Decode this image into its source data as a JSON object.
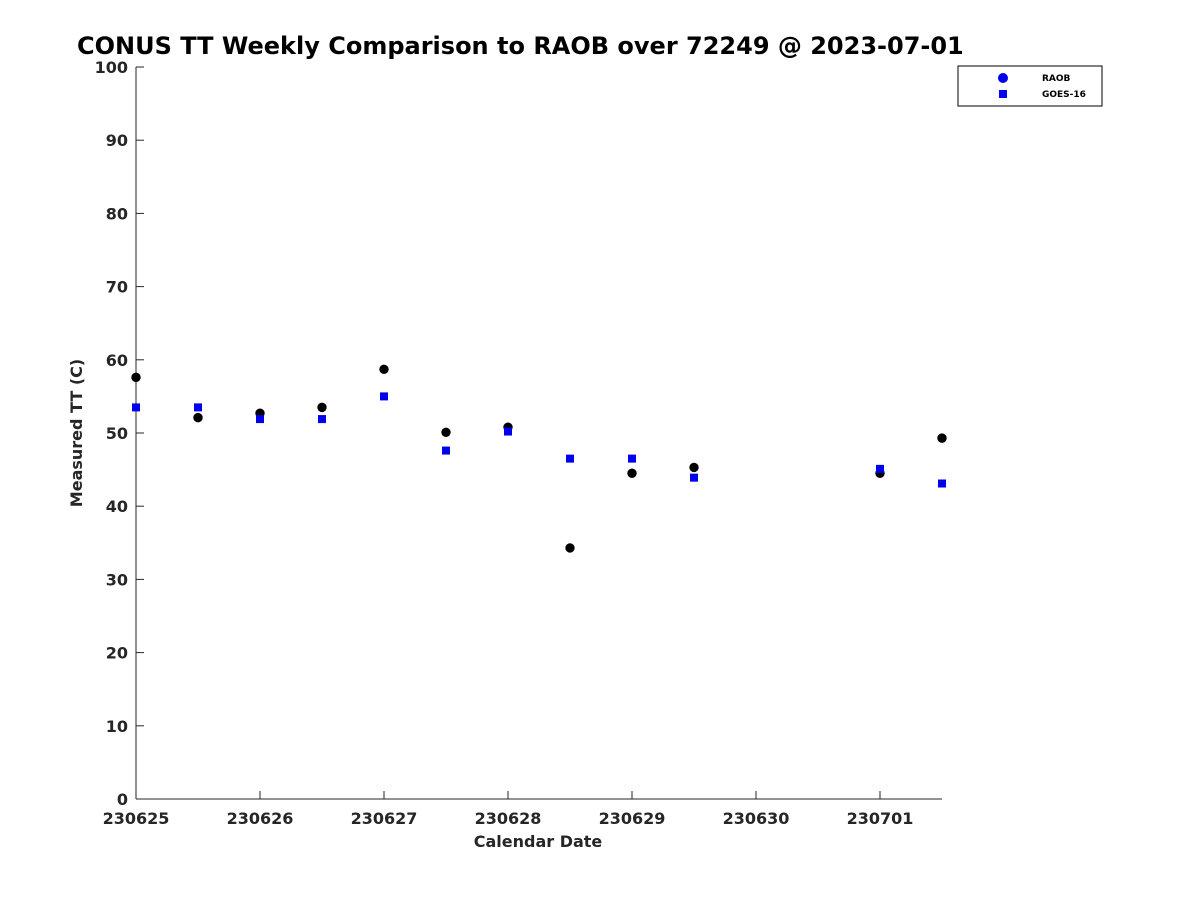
{
  "chart_data": {
    "type": "scatter",
    "title": "CONUS TT Weekly Comparison to RAOB over 72249 @ 2023-07-01",
    "xlabel": "Calendar Date",
    "ylabel": "Measured TT (C)",
    "x_ticks": [
      "230625",
      "230626",
      "230627",
      "230628",
      "230629",
      "230630",
      "230701"
    ],
    "x_tick_days": [
      0,
      1,
      2,
      3,
      4,
      5,
      6
    ],
    "xlim_days": [
      0,
      6.5
    ],
    "ylim": [
      0,
      100
    ],
    "y_ticks": [
      0,
      10,
      20,
      30,
      40,
      50,
      60,
      70,
      80,
      90,
      100
    ],
    "grid": false,
    "legend_position": "top-right",
    "series": [
      {
        "name": "RAOB",
        "marker": "circle",
        "color": "#000000",
        "legend_color": "#0000ee",
        "points": [
          {
            "day": 0.0,
            "y": 57.6
          },
          {
            "day": 0.5,
            "y": 52.1
          },
          {
            "day": 1.0,
            "y": 52.7
          },
          {
            "day": 1.5,
            "y": 53.5
          },
          {
            "day": 2.0,
            "y": 58.7
          },
          {
            "day": 2.5,
            "y": 50.1
          },
          {
            "day": 3.0,
            "y": 50.8
          },
          {
            "day": 3.5,
            "y": 34.3
          },
          {
            "day": 4.0,
            "y": 44.5
          },
          {
            "day": 4.5,
            "y": 45.3
          },
          {
            "day": 6.0,
            "y": 44.5
          },
          {
            "day": 6.5,
            "y": 49.3
          }
        ]
      },
      {
        "name": "GOES-16",
        "marker": "square",
        "color": "#0000ee",
        "points": [
          {
            "day": 0.0,
            "y": 53.5
          },
          {
            "day": 0.5,
            "y": 53.5
          },
          {
            "day": 1.0,
            "y": 51.9
          },
          {
            "day": 1.5,
            "y": 51.9
          },
          {
            "day": 2.0,
            "y": 55.0
          },
          {
            "day": 2.5,
            "y": 47.6
          },
          {
            "day": 3.0,
            "y": 50.2
          },
          {
            "day": 3.5,
            "y": 46.5
          },
          {
            "day": 4.0,
            "y": 46.5
          },
          {
            "day": 4.5,
            "y": 43.9
          },
          {
            "day": 6.0,
            "y": 45.1
          },
          {
            "day": 6.5,
            "y": 43.1
          }
        ]
      }
    ]
  }
}
